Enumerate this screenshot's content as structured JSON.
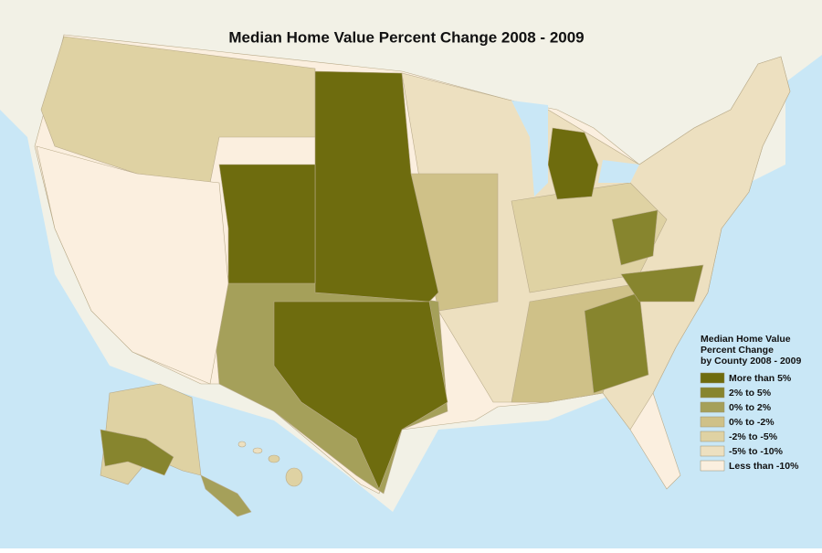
{
  "title": "Median Home Value Percent Change 2008 - 2009",
  "legend": {
    "title": [
      "Median Home Value",
      "Percent Change",
      "by County 2008 - 2009"
    ],
    "items": [
      {
        "label": "More than 5%",
        "color": "#6e6c0e"
      },
      {
        "label": "2% to 5%",
        "color": "#87852e"
      },
      {
        "label": "0% to 2%",
        "color": "#a5a05a"
      },
      {
        "label": "0% to -2%",
        "color": "#cfc188"
      },
      {
        "label": "-2% to -5%",
        "color": "#dfd2a3"
      },
      {
        "label": "-5% to -10%",
        "color": "#ede0c0"
      },
      {
        "label": "Less than -10%",
        "color": "#fbefdf"
      }
    ]
  }
}
